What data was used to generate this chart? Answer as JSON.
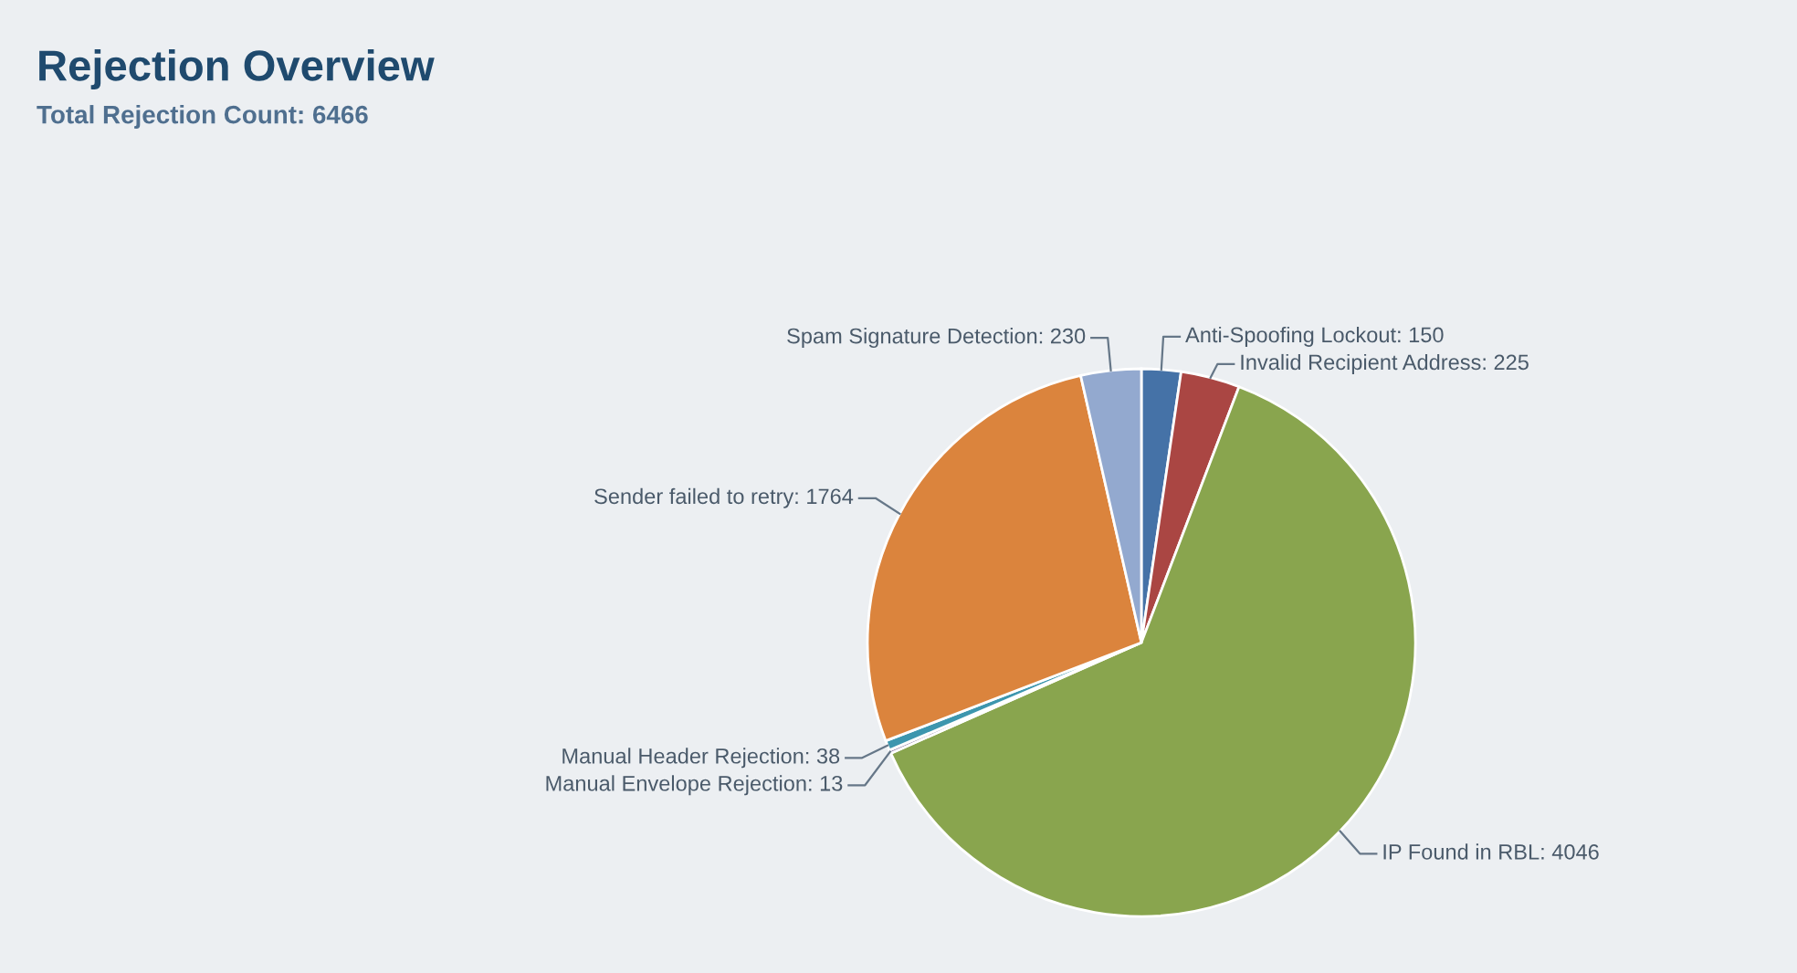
{
  "chart_data": {
    "type": "pie",
    "title": "Rejection Overview",
    "subtitle": "Total Rejection Count: 6466",
    "categories": [
      "Anti-Spoofing Lockout",
      "Invalid Recipient Address",
      "IP Found in RBL",
      "Manual Envelope Rejection",
      "Manual Header Rejection",
      "Sender failed to retry",
      "Spam Signature Detection"
    ],
    "values": [
      150,
      225,
      4046,
      13,
      38,
      1764,
      230
    ],
    "colors": [
      "#4572a7",
      "#aa4643",
      "#89a54e",
      "#80699b",
      "#3d96ae",
      "#db843d",
      "#93a9cf"
    ],
    "value_labels": [
      ": 150",
      ": 225",
      ": 4046",
      ": 13",
      ": 38",
      ": 1764",
      ": 230"
    ],
    "legend": false
  }
}
